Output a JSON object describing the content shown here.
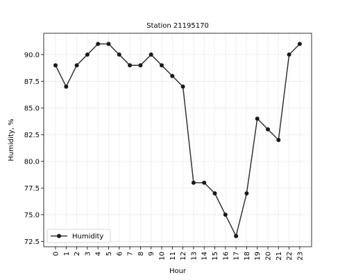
{
  "chart_data": {
    "type": "line",
    "title": "Station 21195170",
    "xlabel": "Hour",
    "ylabel": "Humidity, %",
    "categories": [
      "0",
      "1",
      "2",
      "3",
      "4",
      "5",
      "6",
      "7",
      "8",
      "9",
      "10",
      "11",
      "12",
      "13",
      "14",
      "15",
      "16",
      "17",
      "18",
      "19",
      "20",
      "21",
      "22",
      "23"
    ],
    "series": [
      {
        "name": "Humidity",
        "values": [
          89,
          87,
          89,
          90,
          91,
          91,
          90,
          89,
          89,
          90,
          89,
          88,
          87,
          78,
          78,
          77,
          75,
          73,
          77,
          84,
          83,
          82,
          90,
          91
        ],
        "color": "#333333"
      }
    ],
    "yticks": [
      "72.5",
      "75.0",
      "77.5",
      "80.0",
      "82.5",
      "85.0",
      "87.5",
      "90.0"
    ],
    "ylim": [
      72.0,
      92.0
    ],
    "grid": true,
    "legend_position": "lower-left"
  }
}
